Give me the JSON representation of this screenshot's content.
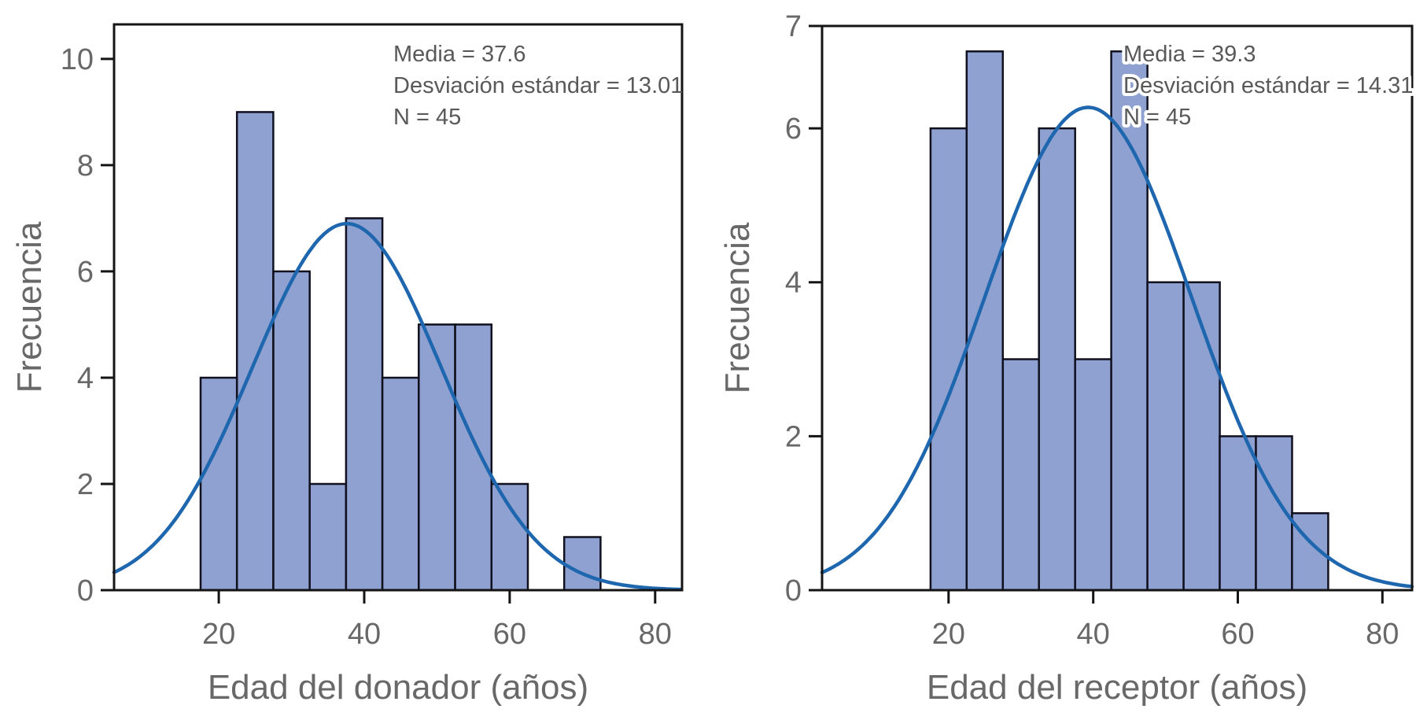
{
  "figure": {
    "description": "Two frequency histograms with fitted normal curves",
    "background": "#ffffff"
  },
  "colors": {
    "bar_fill": "#8ea1d1",
    "bar_stroke": "#10101e",
    "curve": "#1e67ae",
    "axis": "#141414",
    "tick_label": "#686868",
    "axis_title": "#686868",
    "annotation_text": "#595959",
    "annotation_halo": "#ffffff"
  },
  "chart_data": [
    {
      "id": "donor",
      "type": "bar",
      "subtype": "histogram-with-normal-curve",
      "title": "",
      "xlabel": "Edad del donador (años)",
      "ylabel": "Frecuencia",
      "bin_edges": [
        17.5,
        22.5,
        27.5,
        32.5,
        37.5,
        42.5,
        47.5,
        52.5,
        57.5,
        62.5,
        67.5,
        72.5
      ],
      "values": [
        4,
        9,
        6,
        2,
        7,
        4,
        5,
        5,
        2,
        0,
        1
      ],
      "x_axis": {
        "range": [
          5.6,
          83.7
        ],
        "ticks": [
          20,
          40,
          60,
          80
        ],
        "grid": false
      },
      "y_axis": {
        "range": [
          0,
          10.65
        ],
        "ticks": [
          {
            "value": 0,
            "label": "0"
          },
          {
            "value": 2,
            "label": "2"
          },
          {
            "value": 4,
            "label": "4"
          },
          {
            "value": 6,
            "label": "6"
          },
          {
            "value": 8,
            "label": "8"
          },
          {
            "value": 10,
            "label": "10"
          }
        ]
      },
      "normal_curve": {
        "mean": 37.6,
        "sd": 13.01,
        "n": 45,
        "bin_width": 5
      },
      "annotation": {
        "lines": [
          "Media = 37.6",
          "Desviación estándar = 13.01",
          "N = 45"
        ],
        "halo": false
      },
      "stats": {
        "media": 37.6,
        "desviacion_estandar": 13.01,
        "n": 45
      }
    },
    {
      "id": "receptor",
      "type": "bar",
      "subtype": "histogram-with-normal-curve",
      "title": "",
      "xlabel": "Edad del receptor (años)",
      "ylabel": "Frecuencia",
      "bin_edges": [
        17.5,
        22.5,
        27.5,
        32.5,
        37.5,
        42.5,
        47.5,
        52.5,
        57.5,
        62.5,
        67.5,
        72.5
      ],
      "values": [
        6,
        7,
        3,
        6,
        3,
        7,
        4,
        4,
        2,
        2,
        1
      ],
      "x_axis": {
        "range": [
          2.5,
          84.1
        ],
        "ticks": [
          20,
          40,
          60,
          80
        ],
        "grid": false
      },
      "y_axis": {
        "range": [
          0,
          7.33
        ],
        "ticks": [
          {
            "value": 0,
            "label": "0"
          },
          {
            "value": 2,
            "label": "2"
          },
          {
            "value": 4,
            "label": "4"
          },
          {
            "value": 6,
            "label": "6"
          },
          {
            "value": 7.33,
            "label": "7"
          }
        ]
      },
      "normal_curve": {
        "mean": 39.3,
        "sd": 14.31,
        "n": 45,
        "bin_width": 5
      },
      "annotation": {
        "lines": [
          "Media = 39.3",
          "Desviación estándar = 14.31",
          "N = 45"
        ],
        "halo": true
      },
      "stats": {
        "media": 39.3,
        "desviacion_estandar": 14.31,
        "n": 45
      }
    }
  ]
}
